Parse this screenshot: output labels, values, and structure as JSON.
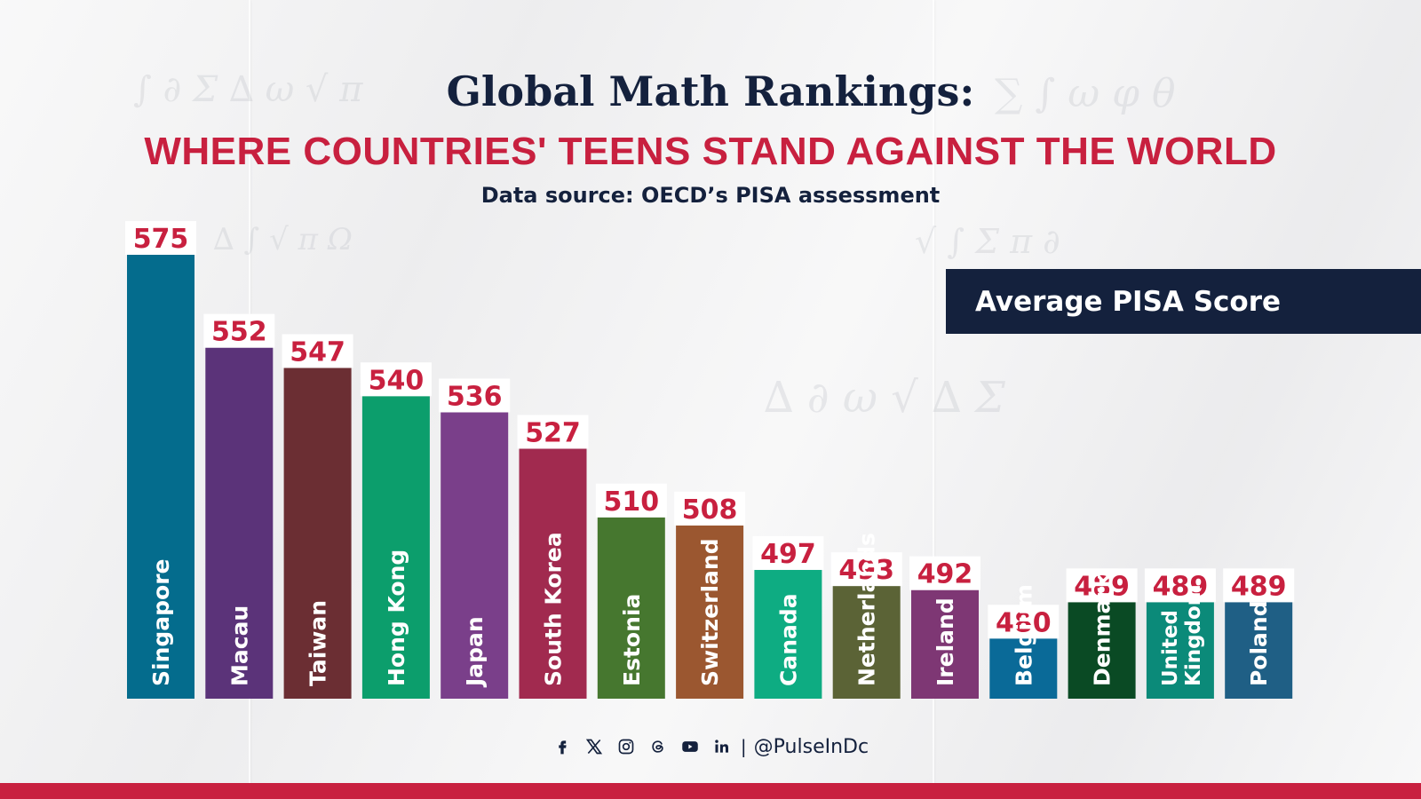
{
  "title": "Global Math Rankings:",
  "subtitle": "WHERE COUNTRIES' TEENS STAND AGAINST THE WORLD",
  "source": "Data source: OECD’s PISA assessment",
  "legend_label": "Average PISA Score",
  "colors": {
    "title": "#14213d",
    "accent": "#c8203f",
    "legend_bg": "#14213d"
  },
  "chart_data": {
    "type": "bar",
    "categories": [
      "Singapore",
      "Macau",
      "Taiwan",
      "Hong Kong",
      "Japan",
      "South Korea",
      "Estonia",
      "Switzerland",
      "Canada",
      "Netherlands",
      "Ireland",
      "Belgium",
      "Denmark",
      "United Kingdom",
      "Poland"
    ],
    "category_lines": [
      [
        "Singapore"
      ],
      [
        "Macau"
      ],
      [
        "Taiwan"
      ],
      [
        "Hong Kong"
      ],
      [
        "Japan"
      ],
      [
        "South Korea"
      ],
      [
        "Estonia"
      ],
      [
        "Switzerland"
      ],
      [
        "Canada"
      ],
      [
        "Netherlands"
      ],
      [
        "Ireland"
      ],
      [
        "Belgium"
      ],
      [
        "Denmark"
      ],
      [
        "United",
        "Kingdom"
      ],
      [
        "Poland"
      ]
    ],
    "values": [
      575,
      552,
      547,
      540,
      536,
      527,
      510,
      508,
      497,
      493,
      492,
      480,
      489,
      489,
      489
    ],
    "colors": [
      "#046c8d",
      "#5b3379",
      "#6b2e33",
      "#0c9e6c",
      "#7a3f8a",
      "#a12a4f",
      "#46772f",
      "#9b5730",
      "#0eac82",
      "#5b6336",
      "#7e3774",
      "#0a6a98",
      "#0a4a24",
      "#0b8a79",
      "#1f5f85"
    ],
    "title": "",
    "xlabel": "",
    "ylabel": "",
    "legend": "top-right",
    "grid": false
  },
  "footer": {
    "icons": [
      "facebook-icon",
      "x-icon",
      "instagram-icon",
      "threads-icon",
      "youtube-icon",
      "linkedin-icon"
    ],
    "separator": "|",
    "handle": "@PulseInDc"
  }
}
